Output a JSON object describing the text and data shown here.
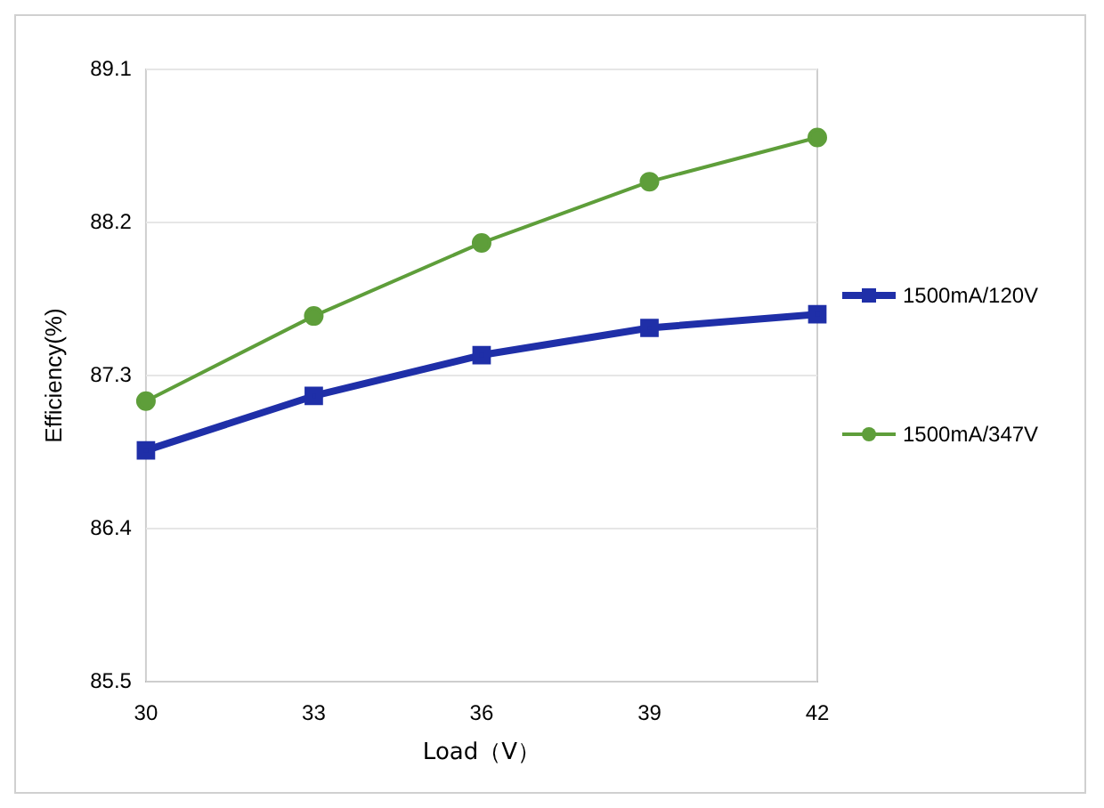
{
  "chart_data": {
    "type": "line",
    "xlabel": "Load（V）",
    "ylabel": "Efficiency(%)",
    "categories": [
      "30",
      "33",
      "36",
      "39",
      "42"
    ],
    "series": [
      {
        "name": "1500mA/120V",
        "color": "#1f2fa8",
        "marker": "square",
        "values": [
          86.86,
          87.18,
          87.42,
          87.58,
          87.66
        ]
      },
      {
        "name": "1500mA/347V",
        "color": "#5e9e3a",
        "marker": "circle",
        "values": [
          87.15,
          87.65,
          88.08,
          88.44,
          88.7
        ]
      }
    ],
    "ylim": [
      85.5,
      89.1
    ],
    "yticks": [
      85.5,
      86.4,
      87.3,
      88.2,
      89.1
    ],
    "grid": "y",
    "legend": "right",
    "line_style": "solid"
  }
}
